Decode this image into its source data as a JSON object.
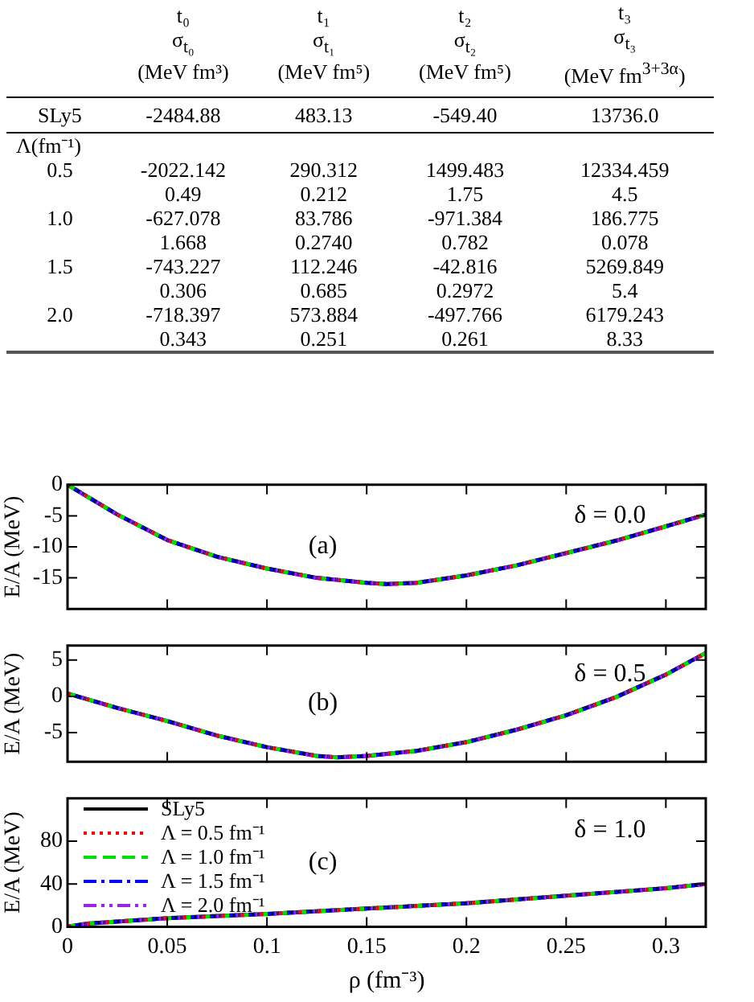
{
  "chart_data": [
    {
      "type": "other",
      "categories": [
        "t₀\nσ$_{t₀}$\n(MeV fm³)",
        "t₁\nσ$_{t₁}$\n(MeV fm⁵)",
        "t₂\nσ$_{t₂}$\n(MeV fm⁵)",
        "t₃\nσ$_{t₃}$\n(MeV fm$^{3+3α}$)"
      ],
      "y_categories": [
        "SLy5",
        "Λ(fm⁻¹)",
        "0.5",
        null,
        "1.0",
        null,
        "1.5",
        null,
        "2.0",
        null
      ],
      "cell_labels": [
        [
          "-2484.88",
          "483.13",
          "-549.40",
          "13736.0"
        ],
        [
          null,
          null,
          null,
          null
        ],
        [
          "-2022.142",
          "290.312",
          "1499.483",
          "12334.459"
        ],
        [
          "0.49",
          "0.212",
          "1.75",
          "4.5"
        ],
        [
          "-627.078",
          "83.786",
          "-971.384",
          "186.775"
        ],
        [
          "1.668",
          "0.2740",
          "0.782",
          "0.078"
        ],
        [
          "-743.227",
          "112.246",
          "-42.816",
          "5269.849"
        ],
        [
          "0.306",
          "0.685",
          "0.2972",
          "5.4"
        ],
        [
          "-718.397",
          "573.884",
          "-497.766",
          "6179.243"
        ],
        [
          "0.343",
          "0.251",
          "0.261",
          "8.33"
        ]
      ]
    },
    {
      "type": "line",
      "ylabel": "E/A (MeV)",
      "annotations": [
        "(a)",
        "δ = 0.0"
      ],
      "x": [
        0,
        0.025,
        0.05,
        0.075,
        0.1,
        0.125,
        0.15,
        0.16,
        0.175,
        0.2,
        0.225,
        0.25,
        0.275,
        0.3,
        0.32
      ],
      "xlim": [
        0,
        0.32
      ],
      "xticks": [
        0,
        0.05,
        0.1,
        0.15,
        0.2,
        0.25,
        0.3
      ],
      "ylim": [
        -20,
        0
      ],
      "yticks": [
        -15,
        -10,
        -5,
        0
      ],
      "tick_labels": "y",
      "marker": "none",
      "series": [
        {
          "color": "#000000",
          "line_style": "solid",
          "values": [
            0,
            -4.8,
            -8.9,
            -11.6,
            -13.5,
            -15,
            -15.8,
            -16,
            -15.8,
            -14.6,
            -13,
            -11,
            -9,
            -6.7,
            -4.8
          ]
        },
        {
          "color": "#ff0000",
          "line_style": "dotted",
          "values": [
            0,
            -4.8,
            -8.9,
            -11.6,
            -13.5,
            -15,
            -15.8,
            -16,
            -15.8,
            -14.6,
            -13,
            -11,
            -9,
            -6.7,
            -4.8
          ]
        },
        {
          "color": "#00e000",
          "line_style": "dashed",
          "values": [
            0,
            -4.8,
            -8.9,
            -11.6,
            -13.5,
            -15,
            -15.8,
            -16,
            -15.8,
            -14.6,
            -13,
            -11,
            -9,
            -6.7,
            -4.8
          ]
        },
        {
          "color": "#0000ff",
          "line_style": "dashdot",
          "values": [
            0,
            -4.8,
            -8.9,
            -11.6,
            -13.5,
            -15,
            -15.8,
            -16,
            -15.8,
            -14.6,
            -13,
            -11,
            -9,
            -6.7,
            -4.8
          ]
        },
        {
          "color": "#a020f0",
          "line_style": "dashdotdot",
          "values": [
            0,
            -4.8,
            -8.9,
            -11.6,
            -13.5,
            -15,
            -15.8,
            -16,
            -15.8,
            -14.6,
            -13,
            -11,
            -9,
            -6.7,
            -4.8
          ]
        }
      ]
    },
    {
      "type": "line",
      "ylabel": "E/A (MeV)",
      "annotations": [
        "(b)",
        "δ = 0.5"
      ],
      "x": [
        0,
        0.025,
        0.05,
        0.075,
        0.1,
        0.125,
        0.135,
        0.15,
        0.175,
        0.2,
        0.225,
        0.25,
        0.275,
        0.3,
        0.32
      ],
      "xlim": [
        0,
        0.32
      ],
      "xticks": [
        0,
        0.05,
        0.1,
        0.15,
        0.2,
        0.25,
        0.3
      ],
      "ylim": [
        -9,
        7
      ],
      "yticks": [
        -5,
        0,
        5
      ],
      "tick_labels": "y",
      "marker": "none",
      "series": [
        {
          "color": "#000000",
          "line_style": "solid",
          "values": [
            0.4,
            -1.6,
            -3.4,
            -5.4,
            -7,
            -8.2,
            -8.4,
            -8.2,
            -7.5,
            -6.3,
            -4.6,
            -2.6,
            -0.1,
            3,
            6
          ]
        },
        {
          "color": "#ff0000",
          "line_style": "dotted",
          "values": [
            0.4,
            -1.6,
            -3.4,
            -5.4,
            -7,
            -8.2,
            -8.4,
            -8.2,
            -7.5,
            -6.3,
            -4.6,
            -2.6,
            -0.1,
            3,
            6
          ]
        },
        {
          "color": "#00e000",
          "line_style": "dashed",
          "values": [
            0.4,
            -1.6,
            -3.4,
            -5.4,
            -7,
            -8.2,
            -8.4,
            -8.2,
            -7.5,
            -6.3,
            -4.6,
            -2.6,
            -0.1,
            3,
            6
          ]
        },
        {
          "color": "#0000ff",
          "line_style": "dashdot",
          "values": [
            0.4,
            -1.6,
            -3.4,
            -5.4,
            -7,
            -8.2,
            -8.4,
            -8.2,
            -7.5,
            -6.3,
            -4.6,
            -2.6,
            -0.1,
            3,
            6
          ]
        },
        {
          "color": "#a020f0",
          "line_style": "dashdotdot",
          "values": [
            0.4,
            -1.6,
            -3.4,
            -5.4,
            -7,
            -8.2,
            -8.4,
            -8.2,
            -7.5,
            -6.3,
            -4.6,
            -2.6,
            -0.1,
            3,
            6
          ]
        }
      ]
    },
    {
      "type": "line",
      "ylabel": "E/A (MeV)",
      "xlabel": "ρ (fm⁻³)",
      "annotations": [
        "(c)",
        "δ = 1.0"
      ],
      "legend": "top left",
      "x": [
        0,
        0.01,
        0.05,
        0.1,
        0.15,
        0.2,
        0.25,
        0.3,
        0.32
      ],
      "xlim": [
        0,
        0.32
      ],
      "xticks": [
        0,
        0.05,
        0.1,
        0.15,
        0.2,
        0.25,
        0.3
      ],
      "ylim": [
        0,
        120
      ],
      "yticks": [
        0,
        40,
        80
      ],
      "marker": "none",
      "series": [
        {
          "name": "SLy5",
          "color": "#000000",
          "line_style": "solid",
          "values": [
            0,
            3,
            8,
            12,
            17,
            22,
            29,
            36,
            40
          ]
        },
        {
          "name": "Λ = 0.5 fm⁻¹",
          "color": "#ff0000",
          "line_style": "dotted",
          "values": [
            0,
            3,
            8,
            12,
            17,
            22,
            29,
            36,
            40
          ]
        },
        {
          "name": "Λ = 1.0 fm⁻¹",
          "color": "#00e000",
          "line_style": "dashed",
          "values": [
            0,
            3,
            8,
            12,
            17,
            22,
            29,
            36,
            40
          ]
        },
        {
          "name": "Λ = 1.5 fm⁻¹",
          "color": "#0000ff",
          "line_style": "dashdot",
          "values": [
            0,
            3,
            8,
            12,
            17,
            22,
            29,
            36,
            40
          ]
        },
        {
          "name": "Λ = 2.0 fm⁻¹",
          "color": "#a020f0",
          "line_style": "dashdotdot",
          "values": [
            0,
            3,
            8,
            12,
            17,
            22,
            29,
            36,
            40
          ]
        }
      ]
    }
  ]
}
